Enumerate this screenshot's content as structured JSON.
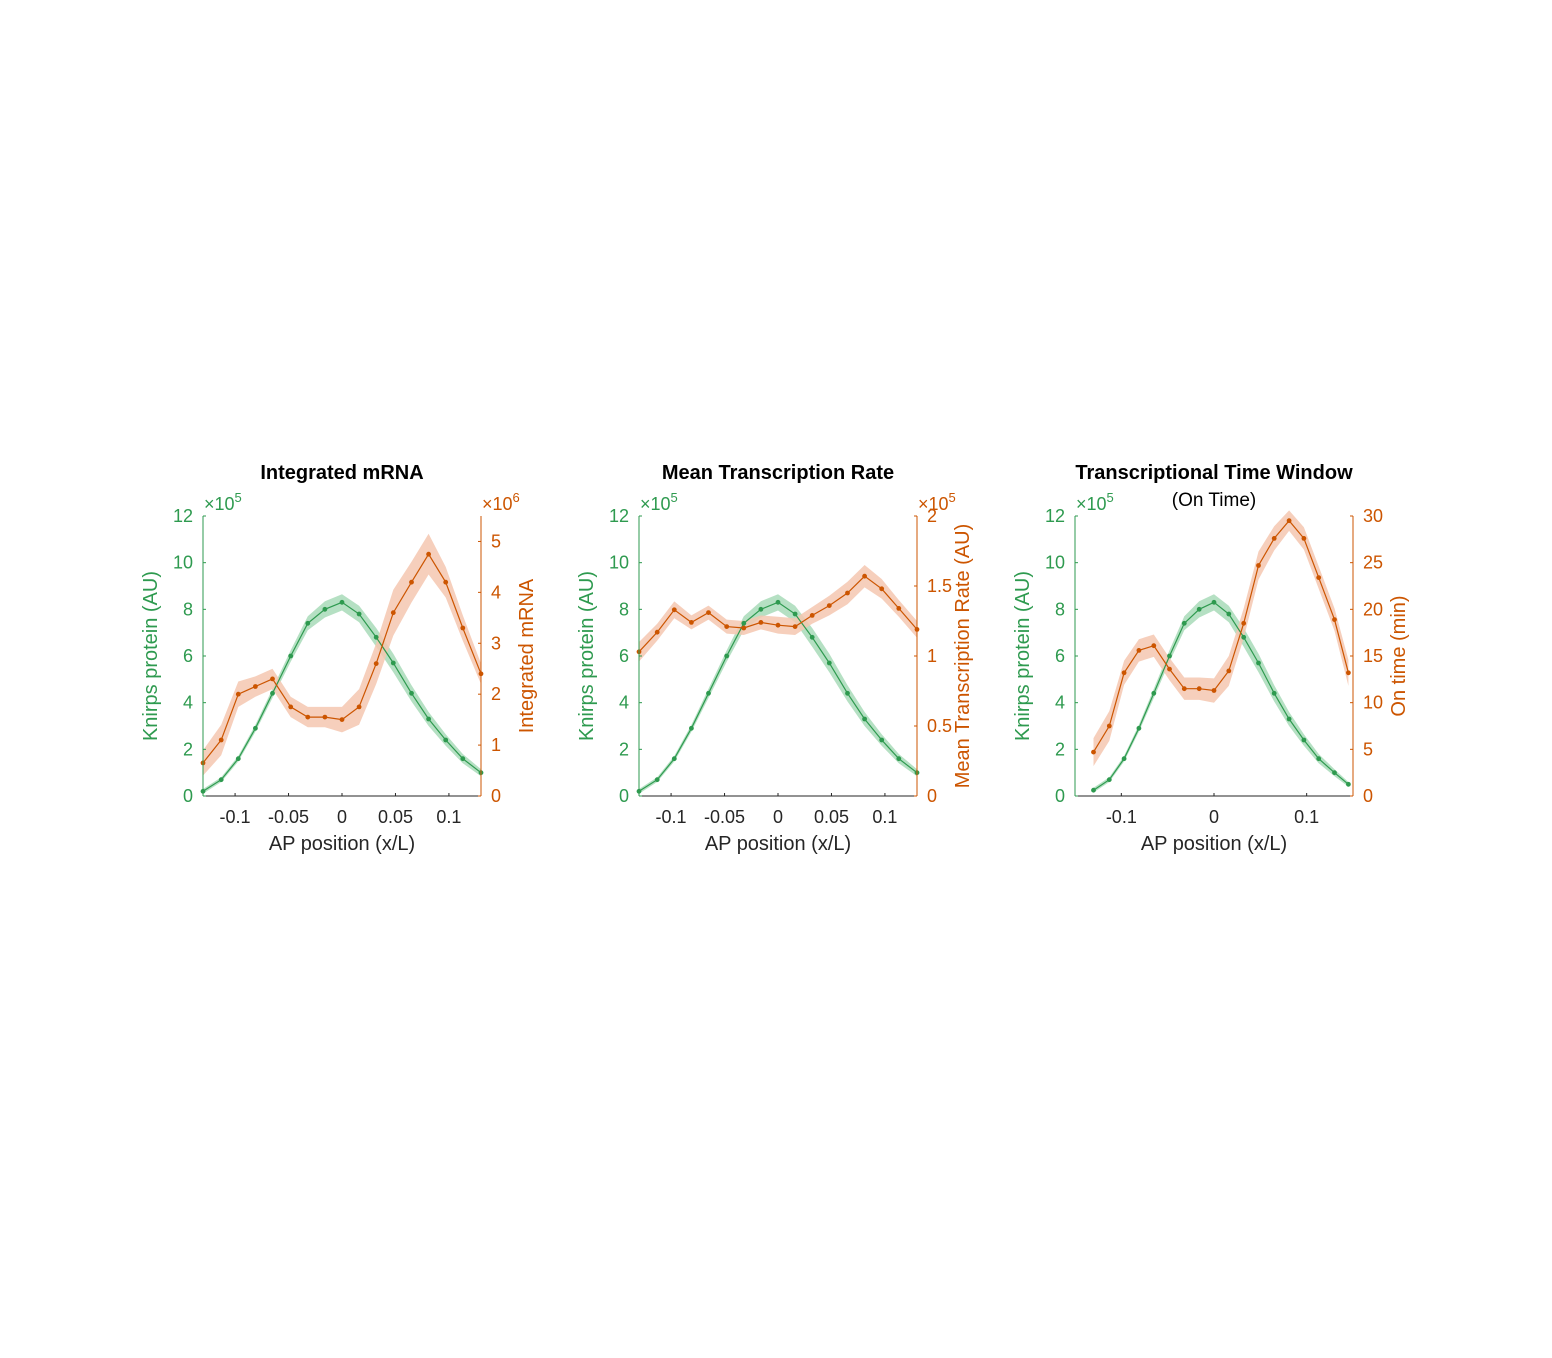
{
  "colors": {
    "green": "#2e9a4f",
    "orange": "#cc5500",
    "green_band": "#a8dbb8",
    "orange_band": "#f5c7b0"
  },
  "chart_data": [
    {
      "type": "line",
      "title": "Integrated mRNA",
      "subtitle": "",
      "xlabel": "AP position (x/L)",
      "xlim": [
        -0.13,
        0.13
      ],
      "xticks": [
        -0.1,
        -0.05,
        0,
        0.05,
        0.1
      ],
      "xtick_labels": [
        "-0.1",
        "-0.05",
        "0",
        "0.05",
        "0.1"
      ],
      "left_axis": {
        "label": "Knirps protein (AU)",
        "multiplier": "10",
        "multiplier_exp": "5",
        "ylim": [
          0,
          12
        ],
        "ticks": [
          0,
          2,
          4,
          6,
          8,
          10,
          12
        ],
        "tick_labels": [
          "0",
          "2",
          "4",
          "6",
          "8",
          "10",
          "12"
        ]
      },
      "right_axis": {
        "label": "Integrated mRNA",
        "multiplier": "10",
        "multiplier_exp": "6",
        "ylim": [
          0,
          5.5
        ],
        "ticks": [
          0,
          1,
          2,
          3,
          4,
          5
        ],
        "tick_labels": [
          "0",
          "1",
          "2",
          "3",
          "4",
          "5"
        ]
      },
      "series": [
        {
          "axis": "left",
          "color": "#2e9a4f",
          "x": [
            -0.13,
            -0.113,
            -0.097,
            -0.081,
            -0.065,
            -0.048,
            -0.032,
            -0.016,
            0,
            0.016,
            0.032,
            0.048,
            0.065,
            0.081,
            0.097,
            0.113,
            0.13
          ],
          "y": [
            0.2,
            0.7,
            1.6,
            2.9,
            4.4,
            6.0,
            7.4,
            8.0,
            8.3,
            7.8,
            6.8,
            5.7,
            4.4,
            3.3,
            2.4,
            1.6,
            1.0
          ],
          "err": [
            0.1,
            0.1,
            0.12,
            0.15,
            0.2,
            0.25,
            0.3,
            0.35,
            0.35,
            0.35,
            0.4,
            0.4,
            0.35,
            0.3,
            0.25,
            0.2,
            0.15
          ]
        },
        {
          "axis": "right",
          "color": "#cc5500",
          "x": [
            -0.13,
            -0.113,
            -0.097,
            -0.081,
            -0.065,
            -0.048,
            -0.032,
            -0.016,
            0,
            0.016,
            0.032,
            0.048,
            0.065,
            0.081,
            0.097,
            0.113,
            0.13
          ],
          "y": [
            0.65,
            1.1,
            2.0,
            2.15,
            2.3,
            1.75,
            1.55,
            1.55,
            1.5,
            1.75,
            2.6,
            3.6,
            4.2,
            4.75,
            4.2,
            3.3,
            2.4
          ],
          "err": [
            0.25,
            0.3,
            0.25,
            0.2,
            0.2,
            0.2,
            0.2,
            0.2,
            0.25,
            0.35,
            0.4,
            0.45,
            0.4,
            0.4,
            0.3,
            0.25,
            0.2
          ]
        }
      ]
    },
    {
      "type": "line",
      "title": "Mean Transcription Rate",
      "subtitle": "",
      "xlabel": "AP position (x/L)",
      "xlim": [
        -0.13,
        0.13
      ],
      "xticks": [
        -0.1,
        -0.05,
        0,
        0.05,
        0.1
      ],
      "xtick_labels": [
        "-0.1",
        "-0.05",
        "0",
        "0.05",
        "0.1"
      ],
      "left_axis": {
        "label": "Knirps protein (AU)",
        "multiplier": "10",
        "multiplier_exp": "5",
        "ylim": [
          0,
          12
        ],
        "ticks": [
          0,
          2,
          4,
          6,
          8,
          10,
          12
        ],
        "tick_labels": [
          "0",
          "2",
          "4",
          "6",
          "8",
          "10",
          "12"
        ]
      },
      "right_axis": {
        "label": "Mean Transcription Rate (AU)",
        "multiplier": "10",
        "multiplier_exp": "5",
        "ylim": [
          0,
          2
        ],
        "ticks": [
          0,
          0.5,
          1,
          1.5,
          2
        ],
        "tick_labels": [
          "0",
          "0.5",
          "1",
          "1.5",
          "2"
        ]
      },
      "series": [
        {
          "axis": "left",
          "color": "#2e9a4f",
          "x": [
            -0.13,
            -0.113,
            -0.097,
            -0.081,
            -0.065,
            -0.048,
            -0.032,
            -0.016,
            0,
            0.016,
            0.032,
            0.048,
            0.065,
            0.081,
            0.097,
            0.113,
            0.13
          ],
          "y": [
            0.2,
            0.7,
            1.6,
            2.9,
            4.4,
            6.0,
            7.4,
            8.0,
            8.3,
            7.8,
            6.8,
            5.7,
            4.4,
            3.3,
            2.4,
            1.6,
            1.0
          ],
          "err": [
            0.1,
            0.1,
            0.12,
            0.15,
            0.2,
            0.25,
            0.3,
            0.35,
            0.35,
            0.35,
            0.4,
            0.4,
            0.35,
            0.3,
            0.25,
            0.2,
            0.15
          ]
        },
        {
          "axis": "right",
          "color": "#cc5500",
          "x": [
            -0.13,
            -0.113,
            -0.097,
            -0.081,
            -0.065,
            -0.048,
            -0.032,
            -0.016,
            0,
            0.016,
            0.032,
            0.048,
            0.065,
            0.081,
            0.097,
            0.113,
            0.13
          ],
          "y": [
            1.03,
            1.17,
            1.33,
            1.24,
            1.31,
            1.21,
            1.2,
            1.24,
            1.22,
            1.21,
            1.29,
            1.36,
            1.45,
            1.57,
            1.48,
            1.34,
            1.19
          ],
          "err": [
            0.07,
            0.06,
            0.06,
            0.05,
            0.05,
            0.05,
            0.05,
            0.05,
            0.06,
            0.06,
            0.06,
            0.07,
            0.08,
            0.08,
            0.07,
            0.06,
            0.06
          ]
        }
      ]
    },
    {
      "type": "line",
      "title": "Transcriptional Time Window",
      "subtitle": "(On Time)",
      "xlabel": "AP position (x/L)",
      "xlim": [
        -0.15,
        0.15
      ],
      "xticks": [
        -0.1,
        0,
        0.1
      ],
      "xtick_labels": [
        "-0.1",
        "0",
        "0.1"
      ],
      "left_axis": {
        "label": "Knirps protein (AU)",
        "multiplier": "10",
        "multiplier_exp": "5",
        "ylim": [
          0,
          12
        ],
        "ticks": [
          0,
          2,
          4,
          6,
          8,
          10,
          12
        ],
        "tick_labels": [
          "0",
          "2",
          "4",
          "6",
          "8",
          "10",
          "12"
        ]
      },
      "right_axis": {
        "label": "On time (min)",
        "multiplier": "",
        "multiplier_exp": "",
        "ylim": [
          0,
          30
        ],
        "ticks": [
          0,
          5,
          10,
          15,
          20,
          25,
          30
        ],
        "tick_labels": [
          "0",
          "5",
          "10",
          "15",
          "20",
          "25",
          "30"
        ]
      },
      "series": [
        {
          "axis": "left",
          "color": "#2e9a4f",
          "x": [
            -0.13,
            -0.113,
            -0.097,
            -0.081,
            -0.065,
            -0.048,
            -0.032,
            -0.016,
            0,
            0.016,
            0.032,
            0.048,
            0.065,
            0.081,
            0.097,
            0.113,
            0.13,
            0.145
          ],
          "y": [
            0.25,
            0.7,
            1.6,
            2.9,
            4.4,
            6.0,
            7.4,
            8.0,
            8.3,
            7.8,
            6.8,
            5.7,
            4.4,
            3.3,
            2.4,
            1.6,
            1.0,
            0.5
          ],
          "err": [
            0.1,
            0.1,
            0.12,
            0.15,
            0.2,
            0.25,
            0.3,
            0.35,
            0.35,
            0.35,
            0.4,
            0.4,
            0.35,
            0.3,
            0.25,
            0.2,
            0.15,
            0.1
          ]
        },
        {
          "axis": "right",
          "color": "#cc5500",
          "x": [
            -0.13,
            -0.113,
            -0.097,
            -0.081,
            -0.065,
            -0.048,
            -0.032,
            -0.016,
            0,
            0.016,
            0.032,
            0.048,
            0.065,
            0.081,
            0.097,
            0.113,
            0.13,
            0.145
          ],
          "y": [
            4.7,
            7.5,
            13.2,
            15.6,
            16.1,
            13.6,
            11.5,
            11.5,
            11.3,
            13.4,
            18.5,
            24.7,
            27.6,
            29.5,
            27.6,
            23.4,
            18.9,
            13.2
          ],
          "err": [
            1.5,
            1.6,
            1.3,
            1.2,
            1.2,
            1.2,
            1.2,
            1.2,
            1.3,
            1.6,
            1.6,
            1.5,
            1.3,
            1.1,
            1.2,
            1.2,
            1.2,
            1.4
          ]
        }
      ]
    }
  ]
}
